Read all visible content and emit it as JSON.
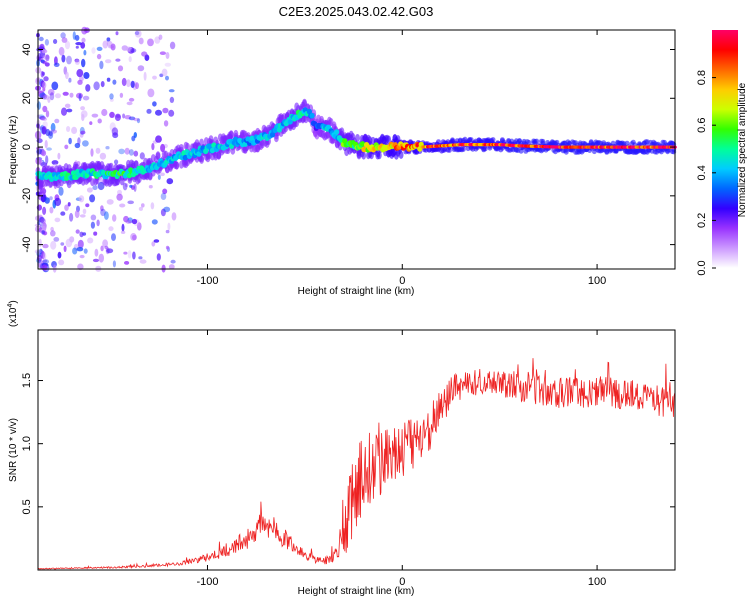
{
  "title": "C2E3.2025.043.02.42.G03",
  "colorbar": {
    "label": "Normalized spectral amplitude",
    "ticks": [
      0.0,
      0.2,
      0.4,
      0.6,
      0.8
    ],
    "tick_labels": [
      "0.0",
      "0.2",
      "0.4",
      "0.6",
      "0.8"
    ],
    "range": [
      0,
      1
    ],
    "colormap": [
      "#ffffff",
      "#cc99ff",
      "#9933ff",
      "#3300ff",
      "#0066ff",
      "#00ccff",
      "#00ff99",
      "#33ff00",
      "#ccff00",
      "#ffcc00",
      "#ff6600",
      "#ff0000",
      "#ff0066"
    ]
  },
  "chart_data": [
    {
      "type": "heatmap",
      "xlabel": "Height of straight line (km)",
      "ylabel": "Frequency (Hz)",
      "xlim": [
        -187,
        140
      ],
      "ylim": [
        -50,
        48
      ],
      "xticks": [
        -100,
        0,
        100
      ],
      "xtick_labels": [
        "-100",
        "0",
        "100"
      ],
      "yticks": [
        -40,
        -20,
        0,
        20,
        40
      ],
      "ytick_labels": [
        "-40",
        "-20",
        "0",
        "20",
        "40"
      ],
      "ridge": {
        "x": [
          -187,
          -175,
          -165,
          -155,
          -145,
          -135,
          -125,
          -115,
          -105,
          -95,
          -85,
          -75,
          -68,
          -62,
          -56,
          -52,
          -48,
          -44,
          -40,
          -35,
          -30,
          -25,
          -20,
          -15,
          -10,
          -5,
          0,
          10,
          20,
          30,
          40,
          50,
          60,
          80,
          100,
          120,
          140
        ],
        "y": [
          -12,
          -12,
          -11,
          -11,
          -11,
          -10,
          -7,
          -4,
          -2,
          0,
          2,
          3,
          5,
          9,
          12,
          14,
          15,
          8,
          8,
          6,
          2,
          1,
          0,
          0,
          0,
          0,
          0,
          0,
          0.5,
          1,
          1,
          1,
          0.5,
          0,
          0,
          0,
          0
        ],
        "amplitude": [
          0.45,
          0.5,
          0.5,
          0.5,
          0.55,
          0.5,
          0.45,
          0.45,
          0.45,
          0.45,
          0.45,
          0.4,
          0.45,
          0.45,
          0.5,
          0.5,
          0.45,
          0.3,
          0.45,
          0.4,
          0.6,
          0.6,
          0.7,
          0.75,
          0.8,
          0.85,
          0.85,
          0.9,
          0.9,
          0.95,
          0.95,
          0.95,
          1.0,
          1.0,
          1.0,
          1.0,
          1.0
        ]
      }
    },
    {
      "type": "line",
      "xlabel": "Height of straight line (km)",
      "ylabel": "SNR (10 * v/v)",
      "y_multiplier_label": "(x10",
      "y_multiplier_exponent": "4",
      "y_multiplier_suffix": ")",
      "xlim": [
        -187,
        140
      ],
      "ylim": [
        0,
        1.9
      ],
      "xticks": [
        -100,
        0,
        100
      ],
      "xtick_labels": [
        "-100",
        "0",
        "100"
      ],
      "yticks": [
        0.5,
        1.0,
        1.5
      ],
      "ytick_labels": [
        "0.5",
        "1.0",
        "1.5"
      ],
      "series": [
        {
          "color": "#ee2222",
          "x": [
            -187,
            -170,
            -150,
            -130,
            -115,
            -105,
            -95,
            -90,
            -85,
            -80,
            -75,
            -70,
            -65,
            -60,
            -55,
            -50,
            -45,
            -40,
            -35,
            -32,
            -28,
            -25,
            -20,
            -15,
            -10,
            -5,
            0,
            5,
            10,
            15,
            20,
            25,
            30,
            40,
            50,
            60,
            70,
            80,
            90,
            100,
            110,
            120,
            130,
            140
          ],
          "y": [
            0.01,
            0.015,
            0.02,
            0.03,
            0.05,
            0.08,
            0.12,
            0.15,
            0.2,
            0.25,
            0.32,
            0.38,
            0.3,
            0.25,
            0.18,
            0.12,
            0.08,
            0.07,
            0.1,
            0.2,
            0.4,
            0.6,
            0.8,
            0.85,
            0.9,
            0.95,
            0.95,
            1.0,
            1.05,
            1.15,
            1.3,
            1.4,
            1.45,
            1.5,
            1.48,
            1.45,
            1.45,
            1.42,
            1.4,
            1.42,
            1.4,
            1.38,
            1.35,
            1.3
          ],
          "noise": [
            0.003,
            0.005,
            0.006,
            0.01,
            0.015,
            0.025,
            0.04,
            0.05,
            0.07,
            0.09,
            0.11,
            0.12,
            0.1,
            0.08,
            0.06,
            0.04,
            0.03,
            0.03,
            0.05,
            0.12,
            0.25,
            0.35,
            0.35,
            0.3,
            0.3,
            0.28,
            0.25,
            0.22,
            0.2,
            0.18,
            0.16,
            0.14,
            0.12,
            0.1,
            0.1,
            0.12,
            0.15,
            0.15,
            0.13,
            0.12,
            0.12,
            0.12,
            0.12,
            0.12
          ]
        }
      ]
    }
  ]
}
